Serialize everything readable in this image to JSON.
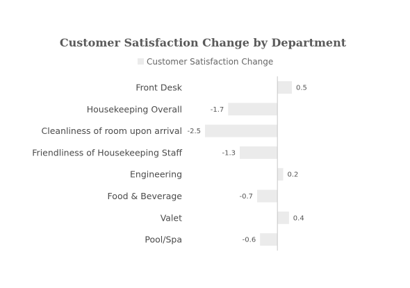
{
  "chart_data": {
    "type": "bar",
    "orientation": "horizontal",
    "title": "Customer Satisfaction Change by Department",
    "legend_position": "top",
    "categories": [
      "Front Desk",
      "Housekeeping Overall",
      "Cleanliness of room upon arrival",
      "Friendliness of Housekeeping Staff",
      "Engineering",
      "Food & Beverage",
      "Valet",
      "Pool/Spa"
    ],
    "series": [
      {
        "name": "Customer Satisfaction Change",
        "values": [
          0.5,
          -1.7,
          -2.5,
          -1.3,
          0.2,
          -0.7,
          0.4,
          -0.6
        ],
        "labels": [
          "0.5",
          "-1.7",
          "-2.5",
          "-1.3",
          "0.2",
          "-0.7",
          "0.4",
          "-0.6"
        ],
        "color": "#ebebeb"
      }
    ],
    "xlim": [
      -2.5,
      0.5
    ],
    "grid": false,
    "axis_color": "#c8c8c8"
  }
}
